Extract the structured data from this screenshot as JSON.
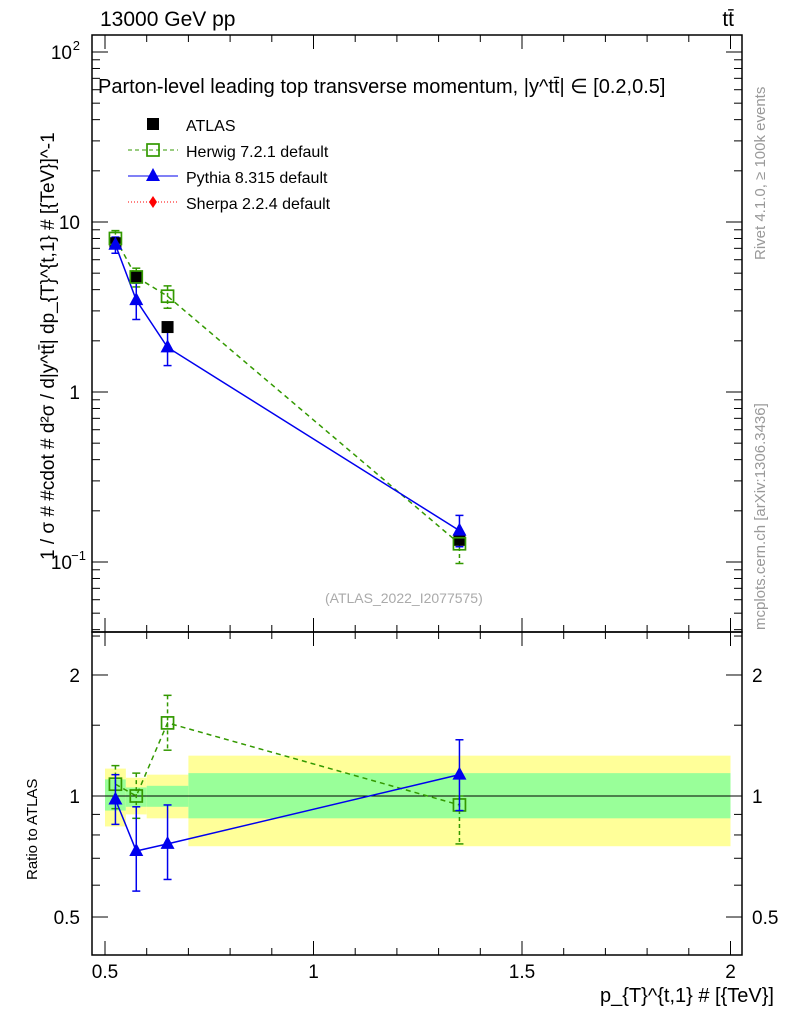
{
  "header": {
    "left": "13000 GeV pp",
    "right": "tt̄"
  },
  "side": {
    "rivet": "Rivet 4.1.0, ≥ 100k events",
    "mcplots": "mcplots.cern.ch [arXiv:1306.3436]"
  },
  "watermark": "(ATLAS_2022_I2077575)",
  "chart_data": [
    {
      "type": "scatter",
      "title": "Parton-level leading top transverse momentum, |y^tt̄| ∈ [0.2,0.5]",
      "xlabel": "p_{T}^{t,1} # [{TeV}]",
      "ylabel": "1 / σ # #cdot # d²σ / d|y^tt̄| dp_{T}^{t,1} # [{TeV}]^-1",
      "xlim": [
        0.45,
        2.03
      ],
      "ylim": [
        0.039,
        126
      ],
      "yscale": "log",
      "xticks": [
        "0.5",
        "1",
        "1.5",
        "2"
      ],
      "yticks": [
        "10^-1",
        "1",
        "10",
        "10^2"
      ],
      "x": [
        0.525,
        0.575,
        0.65,
        1.35
      ],
      "series": [
        {
          "name": "ATLAS",
          "color": "#000000",
          "marker": "square",
          "values": [
            7.5,
            4.75,
            2.41,
            0.135
          ]
        },
        {
          "name": "Herwig 7.2.1 default",
          "color": "#339900",
          "marker": "open-square",
          "dash": true,
          "values": [
            8.0,
            4.75,
            3.66,
            0.128
          ],
          "err_up": [
            0.9,
            0.6,
            0.55,
            0.02
          ],
          "err_dn": [
            0.9,
            0.6,
            0.55,
            0.03
          ]
        },
        {
          "name": "Pythia 8.315 default",
          "color": "#0000ee",
          "marker": "triangle",
          "values": [
            7.35,
            3.47,
            1.83,
            0.153
          ],
          "err_up": [
            0.8,
            0.9,
            0.45,
            0.035
          ],
          "err_dn": [
            0.8,
            0.8,
            0.4,
            0.03
          ]
        },
        {
          "name": "Sherpa 2.2.4 default",
          "color": "#ff0000",
          "marker": "diamond",
          "dotted": true,
          "values": []
        }
      ]
    },
    {
      "type": "scatter",
      "ylabel": "Ratio to ATLAS",
      "xlim": [
        0.45,
        2.03
      ],
      "ylim": [
        0.4,
        2.56
      ],
      "yscale": "log",
      "yticks": [
        "0.5",
        "1",
        "2"
      ],
      "bins": [
        0.5,
        0.55,
        0.6,
        0.7,
        2.0
      ],
      "stat_band": [
        [
          0.92,
          1.1
        ],
        [
          0.94,
          1.05
        ],
        [
          0.94,
          1.06
        ],
        [
          0.88,
          1.14
        ]
      ],
      "total_band": [
        [
          0.84,
          1.17
        ],
        [
          0.9,
          1.11
        ],
        [
          0.88,
          1.13
        ],
        [
          0.75,
          1.26
        ]
      ],
      "x": [
        0.525,
        0.575,
        0.65,
        1.35
      ],
      "series": [
        {
          "name": "Herwig 7.2.1 default",
          "values": [
            1.07,
            1.0,
            1.52,
            0.95
          ],
          "err": [
            [
              0.93,
              1.19
            ],
            [
              0.88,
              1.14
            ],
            [
              1.3,
              1.78
            ],
            [
              0.76,
              1.0
            ]
          ]
        },
        {
          "name": "Pythia 8.315 default",
          "values": [
            0.98,
            0.73,
            0.76,
            1.13
          ],
          "err": [
            [
              0.85,
              1.13
            ],
            [
              0.58,
              0.94
            ],
            [
              0.62,
              0.95
            ],
            [
              0.92,
              1.38
            ]
          ]
        }
      ]
    }
  ]
}
